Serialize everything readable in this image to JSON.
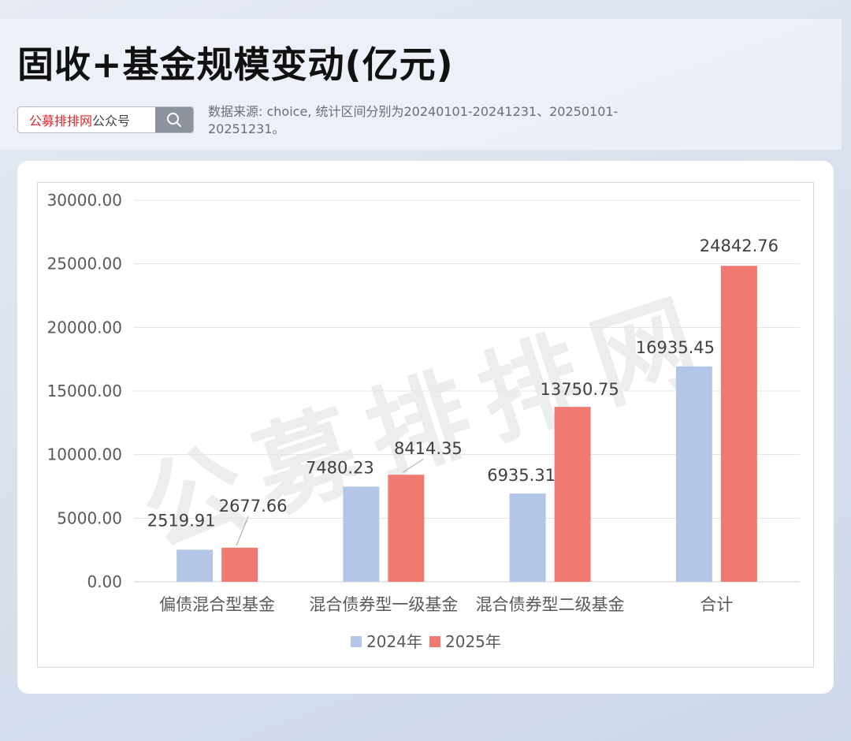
{
  "header": {
    "title": "固收+基金规模变动(亿元)",
    "search_brand": "公募排排网",
    "search_suffix": "公众号",
    "source_note": "数据来源: choice, 统计区间分别为20240101-20241231、20250101-20251231。",
    "search_icon": "magnifier"
  },
  "watermark": "公募排排网",
  "colors": {
    "series_2024": "#b4c6e7",
    "series_2025": "#f07a71",
    "brand_red": "#d8292c"
  },
  "chart_data": {
    "type": "bar",
    "categories": [
      "偏债混合型基金",
      "混合债券型一级基金",
      "混合债券型二级基金",
      "合计"
    ],
    "series": [
      {
        "name": "2024年",
        "values": [
          2519.91,
          7480.23,
          6935.31,
          16935.45
        ],
        "labels": [
          "2519.91",
          "7480.23",
          "6935.31",
          "16935.45"
        ],
        "color": "#b4c6e7"
      },
      {
        "name": "2025年",
        "values": [
          2677.66,
          8414.35,
          13750.75,
          24842.76
        ],
        "labels": [
          "2677.66",
          "8414.35",
          "13750.75",
          "24842.76"
        ],
        "color": "#f07a71"
      }
    ],
    "ylim": [
      0,
      30000
    ],
    "yticks": [
      0,
      5000,
      10000,
      15000,
      20000,
      25000,
      30000
    ],
    "ytick_labels": [
      "0.00",
      "5000.00",
      "10000.00",
      "15000.00",
      "20000.00",
      "25000.00",
      "30000.00"
    ],
    "grid": true,
    "legend": "bottom"
  }
}
